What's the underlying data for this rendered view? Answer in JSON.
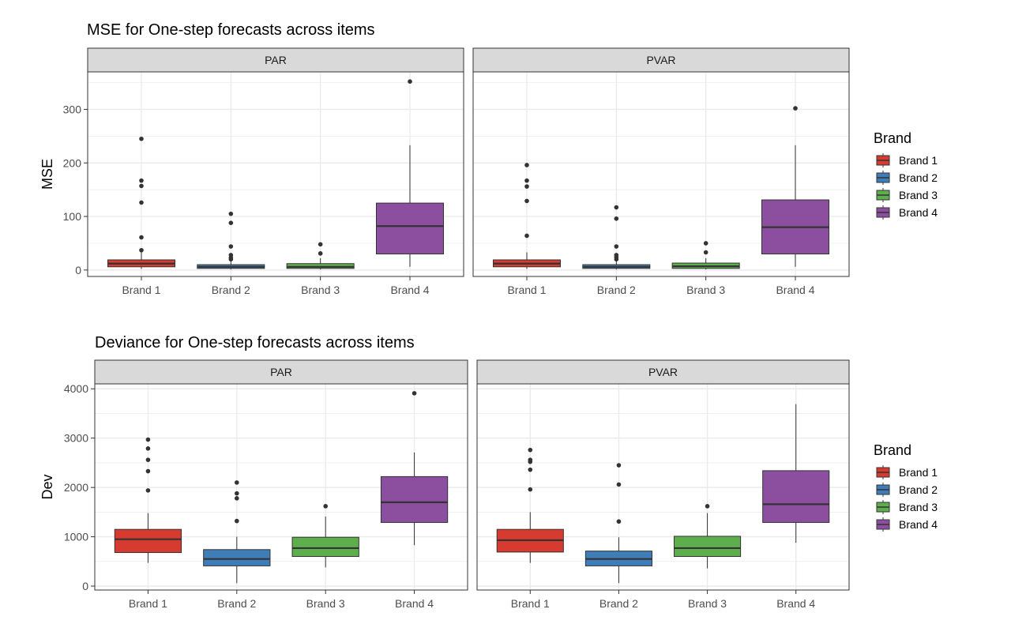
{
  "colors": {
    "Brand 1": "#D73B2F",
    "Brand 2": "#3F7DB8",
    "Brand 3": "#5FAE4E",
    "Brand 4": "#8C4FA0",
    "strip_bg": "#D9D9D9",
    "grid": "#EBEBEB",
    "outline": "#333333"
  },
  "chart_data": [
    {
      "type": "boxplot",
      "title": "MSE for One-step forecasts across items",
      "ylabel": "MSE",
      "xlabel": "",
      "ylim": [
        -12,
        370
      ],
      "yticks": [
        0,
        100,
        200,
        300
      ],
      "grid": true,
      "categories": [
        "Brand 1",
        "Brand 2",
        "Brand 3",
        "Brand 4"
      ],
      "legend": {
        "title": "Brand",
        "entries": [
          "Brand 1",
          "Brand 2",
          "Brand 3",
          "Brand 4"
        ],
        "position": "right"
      },
      "panels": [
        {
          "label": "PAR",
          "boxes": [
            {
              "category": "Brand 1",
              "min": 2,
              "q1": 6,
              "median": 12,
              "q3": 19,
              "max": 33,
              "outliers": [
                37,
                61,
                126,
                157,
                167,
                245
              ]
            },
            {
              "category": "Brand 2",
              "min": 1,
              "q1": 3,
              "median": 6,
              "q3": 10,
              "max": 18,
              "outliers": [
                20,
                23,
                28,
                44,
                88,
                105
              ]
            },
            {
              "category": "Brand 3",
              "min": 1,
              "q1": 3,
              "median": 6,
              "q3": 12,
              "max": 22,
              "outliers": [
                31,
                48
              ]
            },
            {
              "category": "Brand 4",
              "min": 6,
              "q1": 30,
              "median": 82,
              "q3": 125,
              "max": 233,
              "outliers": [
                352
              ]
            }
          ]
        },
        {
          "label": "PVAR",
          "boxes": [
            {
              "category": "Brand 1",
              "min": 2,
              "q1": 6,
              "median": 12,
              "q3": 19,
              "max": 33,
              "outliers": [
                64,
                129,
                156,
                167,
                196
              ]
            },
            {
              "category": "Brand 2",
              "min": 1,
              "q1": 3,
              "median": 6,
              "q3": 10,
              "max": 18,
              "outliers": [
                20,
                24,
                28,
                44,
                96,
                117
              ]
            },
            {
              "category": "Brand 3",
              "min": 1,
              "q1": 3,
              "median": 7,
              "q3": 13,
              "max": 22,
              "outliers": [
                33,
                50
              ]
            },
            {
              "category": "Brand 4",
              "min": 6,
              "q1": 30,
              "median": 80,
              "q3": 131,
              "max": 233,
              "outliers": [
                302
              ]
            }
          ]
        }
      ]
    },
    {
      "type": "boxplot",
      "title": "Deviance for One-step forecasts across items",
      "ylabel": "Dev",
      "xlabel": "",
      "ylim": [
        -80,
        4100
      ],
      "yticks": [
        0,
        1000,
        2000,
        3000,
        4000
      ],
      "grid": true,
      "categories": [
        "Brand 1",
        "Brand 2",
        "Brand 3",
        "Brand 4"
      ],
      "legend": {
        "title": "Brand",
        "entries": [
          "Brand 1",
          "Brand 2",
          "Brand 3",
          "Brand 4"
        ],
        "position": "right"
      },
      "panels": [
        {
          "label": "PAR",
          "boxes": [
            {
              "category": "Brand 1",
              "min": 470,
              "q1": 680,
              "median": 950,
              "q3": 1150,
              "max": 1480,
              "outliers": [
                1940,
                2330,
                2560,
                2790,
                2970
              ]
            },
            {
              "category": "Brand 2",
              "min": 60,
              "q1": 410,
              "median": 550,
              "q3": 740,
              "max": 1000,
              "outliers": [
                1320,
                1780,
                1880,
                2100
              ]
            },
            {
              "category": "Brand 3",
              "min": 380,
              "q1": 600,
              "median": 770,
              "q3": 990,
              "max": 1410,
              "outliers": [
                1620
              ]
            },
            {
              "category": "Brand 4",
              "min": 830,
              "q1": 1290,
              "median": 1700,
              "q3": 2220,
              "max": 2710,
              "outliers": [
                3910
              ]
            }
          ]
        },
        {
          "label": "PVAR",
          "boxes": [
            {
              "category": "Brand 1",
              "min": 470,
              "q1": 690,
              "median": 930,
              "q3": 1150,
              "max": 1500,
              "outliers": [
                1960,
                2360,
                2520,
                2560,
                2760
              ]
            },
            {
              "category": "Brand 2",
              "min": 60,
              "q1": 410,
              "median": 550,
              "q3": 710,
              "max": 990,
              "outliers": [
                1310,
                2060,
                2450
              ]
            },
            {
              "category": "Brand 3",
              "min": 360,
              "q1": 600,
              "median": 770,
              "q3": 1010,
              "max": 1480,
              "outliers": [
                1620
              ]
            },
            {
              "category": "Brand 4",
              "min": 880,
              "q1": 1290,
              "median": 1660,
              "q3": 2340,
              "max": 3690,
              "outliers": []
            }
          ]
        }
      ]
    }
  ]
}
